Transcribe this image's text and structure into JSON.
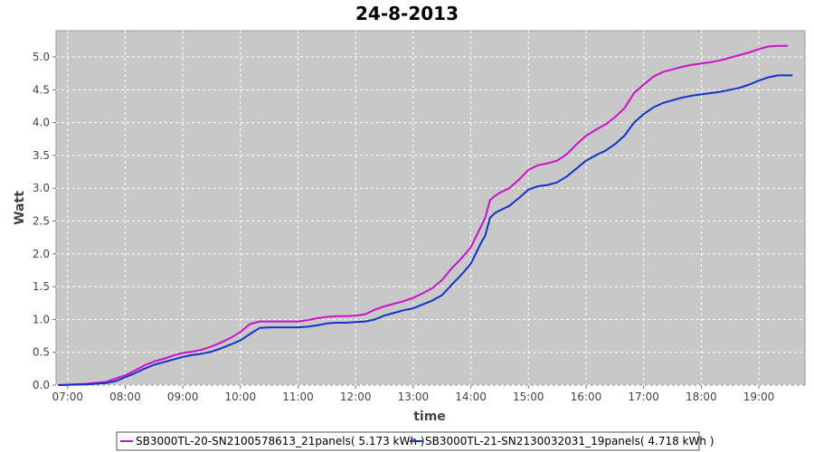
{
  "chart_data": {
    "type": "line",
    "title": "24-8-2013",
    "xlabel": "time",
    "ylabel": "Watt",
    "xlim": [
      "06:48",
      "19:48"
    ],
    "ylim": [
      0,
      5.4
    ],
    "x_ticks": [
      "07:00",
      "08:00",
      "09:00",
      "10:00",
      "11:00",
      "12:00",
      "13:00",
      "14:00",
      "15:00",
      "16:00",
      "17:00",
      "18:00",
      "19:00"
    ],
    "y_ticks": [
      "0.0",
      "0.5",
      "1.0",
      "1.5",
      "2.0",
      "2.5",
      "3.0",
      "3.5",
      "4.0",
      "4.5",
      "5.0"
    ],
    "grid": true,
    "legend_position": "bottom",
    "series": [
      {
        "name": "SB3000TL-20-SN2100578613_21panels( 5.173 kWh )",
        "color": "#cc11cc",
        "x": [
          "06:50",
          "07:20",
          "07:40",
          "07:50",
          "08:00",
          "08:10",
          "08:20",
          "08:30",
          "08:40",
          "08:50",
          "09:00",
          "09:10",
          "09:20",
          "09:30",
          "09:40",
          "09:50",
          "10:00",
          "10:10",
          "10:20",
          "10:30",
          "10:40",
          "10:50",
          "11:00",
          "11:10",
          "11:20",
          "11:30",
          "11:40",
          "11:50",
          "12:00",
          "12:10",
          "12:20",
          "12:30",
          "12:40",
          "12:50",
          "13:00",
          "13:10",
          "13:20",
          "13:30",
          "13:40",
          "13:50",
          "14:00",
          "14:10",
          "14:15",
          "14:20",
          "14:25",
          "14:30",
          "14:40",
          "14:50",
          "15:00",
          "15:10",
          "15:20",
          "15:30",
          "15:40",
          "15:50",
          "16:00",
          "16:10",
          "16:20",
          "16:30",
          "16:40",
          "16:50",
          "17:00",
          "17:10",
          "17:20",
          "17:30",
          "17:40",
          "17:50",
          "18:00",
          "18:10",
          "18:20",
          "18:30",
          "18:40",
          "18:50",
          "19:00",
          "19:10",
          "19:20",
          "19:30"
        ],
        "y": [
          0.0,
          0.02,
          0.05,
          0.1,
          0.15,
          0.22,
          0.3,
          0.36,
          0.4,
          0.45,
          0.49,
          0.51,
          0.54,
          0.59,
          0.65,
          0.72,
          0.81,
          0.93,
          0.97,
          0.97,
          0.97,
          0.97,
          0.97,
          0.99,
          1.02,
          1.04,
          1.05,
          1.05,
          1.06,
          1.08,
          1.15,
          1.2,
          1.24,
          1.28,
          1.33,
          1.4,
          1.48,
          1.6,
          1.78,
          1.93,
          2.1,
          2.4,
          2.55,
          2.82,
          2.88,
          2.93,
          3.0,
          3.13,
          3.28,
          3.35,
          3.38,
          3.42,
          3.52,
          3.67,
          3.8,
          3.89,
          3.97,
          4.08,
          4.22,
          4.45,
          4.58,
          4.7,
          4.77,
          4.81,
          4.85,
          4.88,
          4.9,
          4.92,
          4.95,
          4.99,
          5.03,
          5.07,
          5.12,
          5.16,
          5.17,
          5.17
        ]
      },
      {
        "name": "SB3000TL-21-SN2130032031_19panels( 4.718 kWh )",
        "color": "#1133cc",
        "x": [
          "06:50",
          "07:20",
          "07:40",
          "07:50",
          "08:00",
          "08:10",
          "08:20",
          "08:30",
          "08:40",
          "08:50",
          "09:00",
          "09:10",
          "09:20",
          "09:30",
          "09:40",
          "09:50",
          "10:00",
          "10:10",
          "10:20",
          "10:30",
          "10:40",
          "10:50",
          "11:00",
          "11:10",
          "11:20",
          "11:30",
          "11:40",
          "11:50",
          "12:00",
          "12:10",
          "12:20",
          "12:30",
          "12:40",
          "12:50",
          "13:00",
          "13:10",
          "13:20",
          "13:30",
          "13:40",
          "13:50",
          "14:00",
          "14:10",
          "14:15",
          "14:20",
          "14:25",
          "14:30",
          "14:40",
          "14:50",
          "15:00",
          "15:10",
          "15:20",
          "15:30",
          "15:40",
          "15:50",
          "16:00",
          "16:10",
          "16:20",
          "16:30",
          "16:40",
          "16:50",
          "17:00",
          "17:10",
          "17:20",
          "17:30",
          "17:40",
          "17:50",
          "18:00",
          "18:10",
          "18:20",
          "18:30",
          "18:40",
          "18:50",
          "19:00",
          "19:10",
          "19:20",
          "19:30",
          "19:35"
        ],
        "y": [
          0.0,
          0.01,
          0.03,
          0.06,
          0.12,
          0.18,
          0.25,
          0.31,
          0.35,
          0.39,
          0.43,
          0.46,
          0.48,
          0.51,
          0.56,
          0.62,
          0.68,
          0.78,
          0.87,
          0.88,
          0.88,
          0.88,
          0.88,
          0.89,
          0.91,
          0.94,
          0.95,
          0.95,
          0.96,
          0.97,
          1.0,
          1.06,
          1.1,
          1.14,
          1.17,
          1.23,
          1.29,
          1.37,
          1.53,
          1.68,
          1.85,
          2.15,
          2.28,
          2.55,
          2.62,
          2.66,
          2.73,
          2.85,
          2.98,
          3.03,
          3.05,
          3.09,
          3.18,
          3.3,
          3.42,
          3.5,
          3.57,
          3.67,
          3.8,
          4.0,
          4.13,
          4.23,
          4.3,
          4.34,
          4.38,
          4.41,
          4.43,
          4.45,
          4.47,
          4.5,
          4.53,
          4.58,
          4.64,
          4.69,
          4.72,
          4.72,
          4.72
        ]
      }
    ]
  }
}
